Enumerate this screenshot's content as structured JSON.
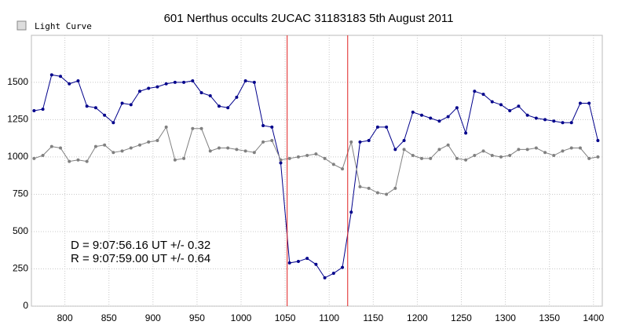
{
  "window_title": "Light Curve",
  "chart_data": {
    "type": "line",
    "title": "601 Nerthus occults 2UCAC 31183183  5th August 2011",
    "annotations": [
      "D = 9:07:56.16 UT +/- 0.32",
      "R = 9:07:59.00 UT +/- 0.64"
    ],
    "event_lines": [
      1052.3,
      1121
    ],
    "event_color": "#e02020",
    "x": [
      765,
      775,
      785,
      795,
      805,
      815,
      825,
      835,
      845,
      855,
      865,
      875,
      885,
      895,
      905,
      915,
      925,
      935,
      945,
      955,
      965,
      975,
      985,
      995,
      1005,
      1015,
      1025,
      1035,
      1045,
      1055,
      1065,
      1075,
      1085,
      1095,
      1105,
      1115,
      1125,
      1135,
      1145,
      1155,
      1165,
      1175,
      1185,
      1195,
      1205,
      1215,
      1225,
      1235,
      1245,
      1255,
      1265,
      1275,
      1285,
      1295,
      1305,
      1315,
      1325,
      1335,
      1345,
      1355,
      1365,
      1375,
      1385,
      1395,
      1405
    ],
    "series": [
      {
        "color": "#00008b",
        "values": [
          1310,
          1320,
          1550,
          1540,
          1490,
          1510,
          1340,
          1330,
          1280,
          1230,
          1360,
          1350,
          1440,
          1460,
          1470,
          1490,
          1500,
          1500,
          1510,
          1430,
          1410,
          1340,
          1330,
          1400,
          1510,
          1500,
          1210,
          1200,
          960,
          290,
          300,
          320,
          280,
          190,
          220,
          260,
          630,
          1100,
          1110,
          1200,
          1200,
          1050,
          1110,
          1300,
          1280,
          1260,
          1240,
          1270,
          1330,
          1160,
          1440,
          1420,
          1370,
          1350,
          1310,
          1340,
          1280,
          1260,
          1250,
          1240,
          1230,
          1230,
          1360,
          1360,
          1110
        ]
      },
      {
        "color": "#808080",
        "values": [
          990,
          1010,
          1070,
          1060,
          970,
          980,
          970,
          1070,
          1080,
          1030,
          1040,
          1060,
          1080,
          1100,
          1110,
          1200,
          980,
          990,
          1190,
          1190,
          1040,
          1060,
          1060,
          1050,
          1040,
          1030,
          1100,
          1110,
          980,
          990,
          1000,
          1010,
          1020,
          990,
          950,
          920,
          1100,
          800,
          790,
          760,
          750,
          790,
          1050,
          1010,
          990,
          990,
          1050,
          1080,
          990,
          980,
          1010,
          1040,
          1010,
          1000,
          1010,
          1050,
          1050,
          1060,
          1030,
          1010,
          1040,
          1060,
          1060,
          990,
          1000
        ]
      }
    ],
    "xlim": [
      762,
      1410
    ],
    "ylim": [
      0,
      1815
    ],
    "xticks": [
      800,
      850,
      900,
      950,
      1000,
      1050,
      1100,
      1150,
      1200,
      1250,
      1300,
      1350,
      1400
    ],
    "yticks": [
      0,
      250,
      500,
      750,
      1000,
      1250,
      1500
    ],
    "grid": true
  }
}
